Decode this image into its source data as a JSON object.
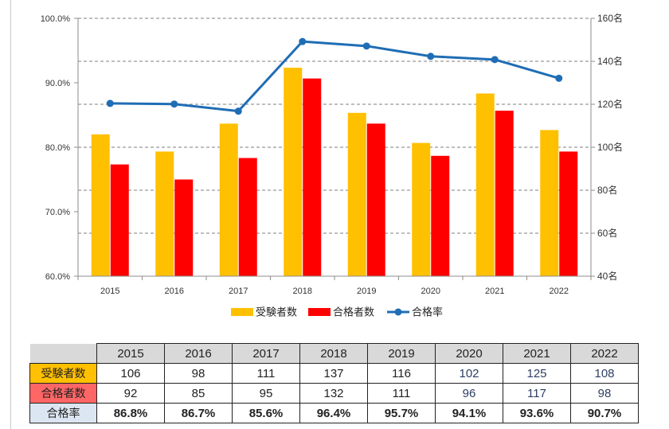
{
  "chart_data": {
    "type": "bar",
    "categories": [
      "2015",
      "2016",
      "2017",
      "2018",
      "2019",
      "2020",
      "2021",
      "2022"
    ],
    "series": [
      {
        "name": "受験者数",
        "type": "bar",
        "axis": "right",
        "color": "#FFC000",
        "values": [
          106,
          98,
          111,
          137,
          116,
          102,
          125,
          108
        ]
      },
      {
        "name": "合格者数",
        "type": "bar",
        "axis": "right",
        "color": "#FF0000",
        "values": [
          92,
          85,
          95,
          132,
          111,
          96,
          117,
          98
        ]
      },
      {
        "name": "合格率",
        "type": "line",
        "axis": "left",
        "color": "#1F6DB5",
        "values": [
          86.8,
          86.7,
          85.6,
          96.4,
          95.7,
          94.1,
          93.6,
          90.7
        ]
      }
    ],
    "left_axis": {
      "min": 60,
      "max": 100,
      "step": 10,
      "tick_labels": [
        "60.0%",
        "70.0%",
        "80.0%",
        "90.0%",
        "100.0%"
      ]
    },
    "right_axis": {
      "min": 40,
      "max": 160,
      "step": 20,
      "tick_labels": [
        "40名",
        "60名",
        "80名",
        "100名",
        "120名",
        "140名",
        "160名"
      ]
    },
    "grid": true,
    "legend_position": "bottom"
  },
  "table": {
    "years": [
      "2015",
      "2016",
      "2017",
      "2018",
      "2019",
      "2020",
      "2021",
      "2022"
    ],
    "rows": [
      {
        "label": "受験者数",
        "bg": "#FFC000",
        "values": [
          "106",
          "98",
          "111",
          "137",
          "116",
          "102",
          "125",
          "108"
        ]
      },
      {
        "label": "合格者数",
        "bg": "#FF6666",
        "values": [
          "92",
          "85",
          "95",
          "132",
          "111",
          "96",
          "117",
          "98"
        ]
      },
      {
        "label": "合格率",
        "bg": "#DCE6F2",
        "values": [
          "86.8%",
          "86.7%",
          "85.6%",
          "96.4%",
          "95.7%",
          "94.1%",
          "93.6%",
          "90.7%"
        ]
      }
    ]
  }
}
